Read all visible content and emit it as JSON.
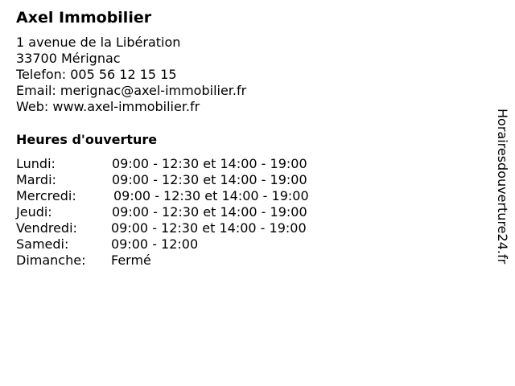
{
  "business": {
    "name": "Axel Immobilier",
    "address_line1": "1 avenue de la Libération",
    "address_line2": "33700 Mérignac",
    "phone": "Telefon: 005 56 12 15 15",
    "email": "Email: merignac@axel-immobilier.fr",
    "web": "Web: www.axel-immobilier.fr"
  },
  "hours": {
    "heading": "Heures d'ouverture",
    "rows": [
      {
        "day": "Lundi:",
        "time": "09:00 - 12:30 et 14:00 - 19:00"
      },
      {
        "day": "Mardi:",
        "time": "09:00 - 12:30 et 14:00 - 19:00"
      },
      {
        "day": "Mercredi:",
        "time": "09:00 - 12:30 et 14:00 - 19:00"
      },
      {
        "day": "Jeudi:",
        "time": "09:00 - 12:30 et 14:00 - 19:00"
      },
      {
        "day": "Vendredi:",
        "time": "09:00 - 12:30 et 14:00 - 19:00"
      },
      {
        "day": "Samedi:",
        "time": "09:00 - 12:00"
      },
      {
        "day": "Dimanche:",
        "time": "Fermé"
      }
    ]
  },
  "side_text": "Horairesdouverture24.fr"
}
